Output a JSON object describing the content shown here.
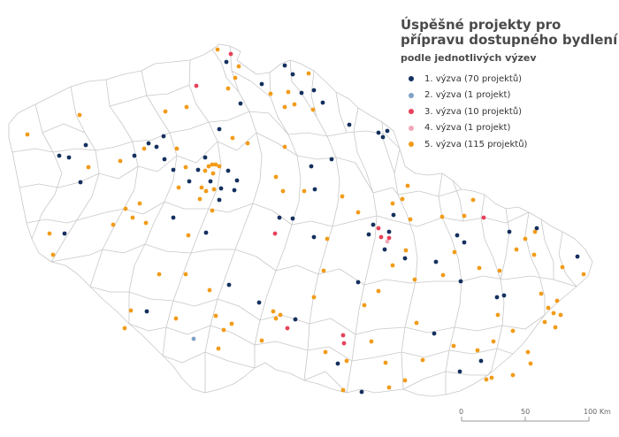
{
  "title_line1": "Úspěšné projekty pro",
  "title_line2": "přípravu dostupného bydlení",
  "subtitle": "podle jednotlivých výzev",
  "legend": [
    {
      "label": "1. výzva (70 projektů)",
      "color": "#14305e"
    },
    {
      "label": "2. výzva (1 projekt)",
      "color": "#7ea1c4"
    },
    {
      "label": "3. výzva (10 projektů)",
      "color": "#e8415a"
    },
    {
      "label": "4. výzva (1 projekt)",
      "color": "#f2a8b8"
    },
    {
      "label": "5. výzva (115 projektů)",
      "color": "#f29b18"
    }
  ],
  "scale": {
    "labels": [
      "0",
      "50",
      "100 Km"
    ]
  }
}
